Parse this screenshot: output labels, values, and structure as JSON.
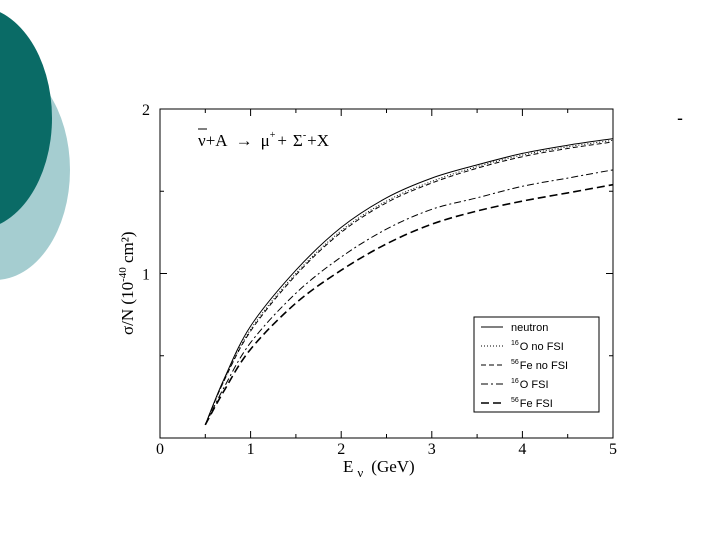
{
  "slide": {
    "corner_mark": "-",
    "colors": {
      "circle_dark": "#0a6b66",
      "circle_light": "#a5cdd0",
      "background": "#ffffff"
    }
  },
  "chart_data": {
    "type": "line",
    "reaction": {
      "nu": "ν",
      "plus_a": "+A",
      "arrow": "→",
      "mu": "μ",
      "mu_sup": "+",
      "plus1": "+",
      "sigma": "Σ",
      "sigma_sup": "-",
      "plus_x": "+X"
    },
    "xlabel": {
      "main": "E",
      "sub": "ν",
      "unit": "(GeV)"
    },
    "ylabel": {
      "pre": "σ/N (10",
      "sup": "-40",
      "post": " cm²)"
    },
    "xlim": [
      0,
      5
    ],
    "ylim": [
      0,
      2
    ],
    "xticks": [
      "0",
      "1",
      "2",
      "3",
      "4",
      "5"
    ],
    "yticks": [
      {
        "v": 1,
        "label": "1"
      },
      {
        "v": 2,
        "label": "2"
      }
    ],
    "legend_placement": "bottom-right",
    "series": [
      {
        "name": "neutron",
        "sup": "",
        "dash": "",
        "width": 1.0,
        "x": [
          0.5,
          0.7,
          1.0,
          1.5,
          2.0,
          2.5,
          3.0,
          3.5,
          4.0,
          4.5,
          5.0
        ],
        "y": [
          0.08,
          0.35,
          0.68,
          1.02,
          1.28,
          1.46,
          1.58,
          1.66,
          1.73,
          1.78,
          1.82
        ]
      },
      {
        "name": "O no FSI",
        "sup": "16",
        "dash": "1,2",
        "width": 1.0,
        "x": [
          0.5,
          0.7,
          1.0,
          1.5,
          2.0,
          2.5,
          3.0,
          3.5,
          4.0,
          4.5,
          5.0
        ],
        "y": [
          0.08,
          0.34,
          0.66,
          1.0,
          1.26,
          1.44,
          1.56,
          1.65,
          1.72,
          1.77,
          1.81
        ]
      },
      {
        "name": "Fe no FSI",
        "sup": "56",
        "dash": "5,3",
        "width": 1.0,
        "x": [
          0.5,
          0.7,
          1.0,
          1.5,
          2.0,
          2.5,
          3.0,
          3.5,
          4.0,
          4.5,
          5.0
        ],
        "y": [
          0.08,
          0.34,
          0.65,
          0.99,
          1.25,
          1.43,
          1.55,
          1.64,
          1.71,
          1.76,
          1.8
        ]
      },
      {
        "name": "O FSI",
        "sup": "16",
        "dash": "7,3,2,3",
        "width": 1.0,
        "x": [
          0.5,
          0.7,
          1.0,
          1.5,
          2.0,
          2.5,
          3.0,
          3.5,
          4.0,
          4.5,
          5.0
        ],
        "y": [
          0.08,
          0.3,
          0.58,
          0.88,
          1.1,
          1.27,
          1.39,
          1.46,
          1.53,
          1.58,
          1.63
        ]
      },
      {
        "name": "Fe FSI",
        "sup": "56",
        "dash": "8,4",
        "width": 1.6,
        "x": [
          0.5,
          0.7,
          1.0,
          1.5,
          2.0,
          2.5,
          3.0,
          3.5,
          4.0,
          4.5,
          5.0
        ],
        "y": [
          0.08,
          0.28,
          0.54,
          0.82,
          1.02,
          1.18,
          1.3,
          1.38,
          1.44,
          1.49,
          1.54
        ]
      }
    ]
  }
}
